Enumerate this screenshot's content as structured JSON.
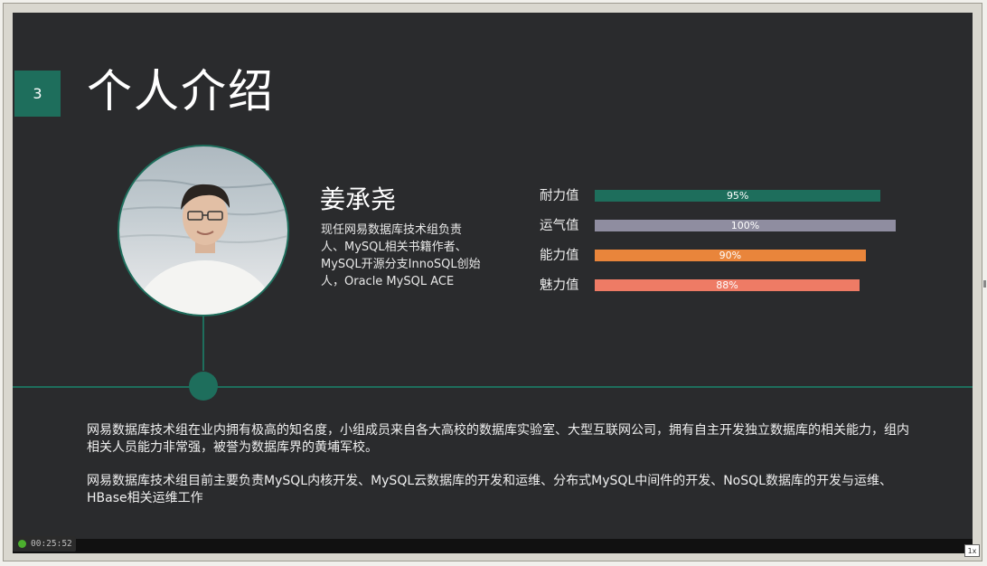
{
  "slide": {
    "number": "3",
    "title": "个人介绍"
  },
  "person": {
    "name": "姜承尧",
    "description": "现任网易数据库技术组负责人、MySQL相关书籍作者、MySQL开源分支InnoSQL创始人，Oracle MySQL ACE"
  },
  "stats": [
    {
      "label": "耐力值",
      "value": "95%",
      "fraction": 0.95,
      "color": "#1e6e5c"
    },
    {
      "label": "运气值",
      "value": "100%",
      "fraction": 1.0,
      "color": "#8f8da0"
    },
    {
      "label": "能力值",
      "value": "90%",
      "fraction": 0.9,
      "color": "#e9853b"
    },
    {
      "label": "魅力值",
      "value": "88%",
      "fraction": 0.88,
      "color": "#ee7b65"
    }
  ],
  "intro": {
    "paragraph1": "网易数据库技术组在业内拥有极高的知名度，小组成员来自各大高校的数据库实验室、大型互联网公司，拥有自主开发独立数据库的相关能力，组内相关人员能力非常强，被誉为数据库界的黄埔军校。",
    "paragraph2": "网易数据库技术组目前主要负责MySQL内核开发、MySQL云数据库的开发和运维、分布式MySQL中间件的开发、NoSQL数据库的开发与运维、HBase相关运维工作"
  },
  "player": {
    "elapsed_time": "00:25:52",
    "speed": "1x"
  },
  "colors": {
    "accent": "#1e6e5c",
    "slide_background": "#2a2b2d"
  }
}
